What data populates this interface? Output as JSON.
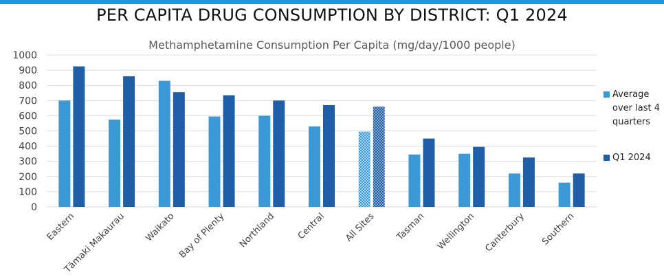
{
  "title": "PER CAPITA DRUG CONSUMPTION BY DISTRICT: Q1 2024",
  "subtitle": "Methamphetamine Consumption Per Capita (mg/day/1000 people)",
  "colors": {
    "top_rule": "#1a9ad9",
    "average": "#3b9ad6",
    "q1": "#1f5fa8",
    "grid": "#d9d9d9",
    "axis_text": "#404040"
  },
  "chart_data": {
    "type": "bar",
    "title": "PER CAPITA DRUG CONSUMPTION BY DISTRICT: Q1 2024",
    "subtitle": "Methamphetamine Consumption Per Capita (mg/day/1000 people)",
    "categories": [
      "Eastern",
      "Tāmaki Makaurau",
      "Waikato",
      "Bay of Plenty",
      "Northland",
      "Central",
      "All Sites",
      "Tasman",
      "Wellington",
      "Canterbury",
      "Southern"
    ],
    "series": [
      {
        "name": "Average over last 4 quarters",
        "values": [
          700,
          575,
          830,
          595,
          600,
          530,
          495,
          345,
          350,
          220,
          160
        ]
      },
      {
        "name": "Q1 2024",
        "values": [
          925,
          860,
          755,
          735,
          700,
          670,
          660,
          450,
          395,
          325,
          220
        ]
      }
    ],
    "highlighted_category": "All Sites",
    "ylim": [
      0,
      1000
    ],
    "yticks": [
      0,
      100,
      200,
      300,
      400,
      500,
      600,
      700,
      800,
      900,
      1000
    ],
    "xlabel": "",
    "ylabel": "",
    "grid": true,
    "legend_position": "right"
  },
  "legend": [
    {
      "label": "Average over last 4 quarters"
    },
    {
      "label": "Q1 2024"
    }
  ]
}
